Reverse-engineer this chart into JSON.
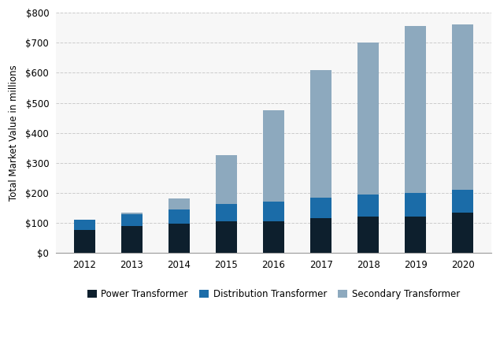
{
  "years": [
    "2012",
    "2013",
    "2014",
    "2015",
    "2016",
    "2017",
    "2018",
    "2019",
    "2020"
  ],
  "power_transformer": [
    78,
    90,
    97,
    105,
    105,
    115,
    120,
    122,
    135
  ],
  "distribution_transformer": [
    32,
    40,
    47,
    57,
    65,
    70,
    75,
    78,
    75
  ],
  "secondary_transformer": [
    0,
    5,
    38,
    165,
    305,
    425,
    505,
    555,
    550
  ],
  "color_power": "#0d1f2d",
  "color_distribution": "#1b6ca8",
  "color_secondary": "#8da9be",
  "ylabel": "Total Market Value in millions",
  "ylim": [
    0,
    800
  ],
  "yticks": [
    0,
    100,
    200,
    300,
    400,
    500,
    600,
    700,
    800
  ],
  "legend_labels": [
    "Power Transformer",
    "Distribution Transformer",
    "Secondary Transformer"
  ],
  "background_color": "#ffffff",
  "plot_background": "#f7f7f7",
  "bar_width": 0.45,
  "outer_border_color": "#aaaaaa",
  "grid_color": "#cccccc",
  "grid_linestyle": "--",
  "spine_color": "#999999"
}
